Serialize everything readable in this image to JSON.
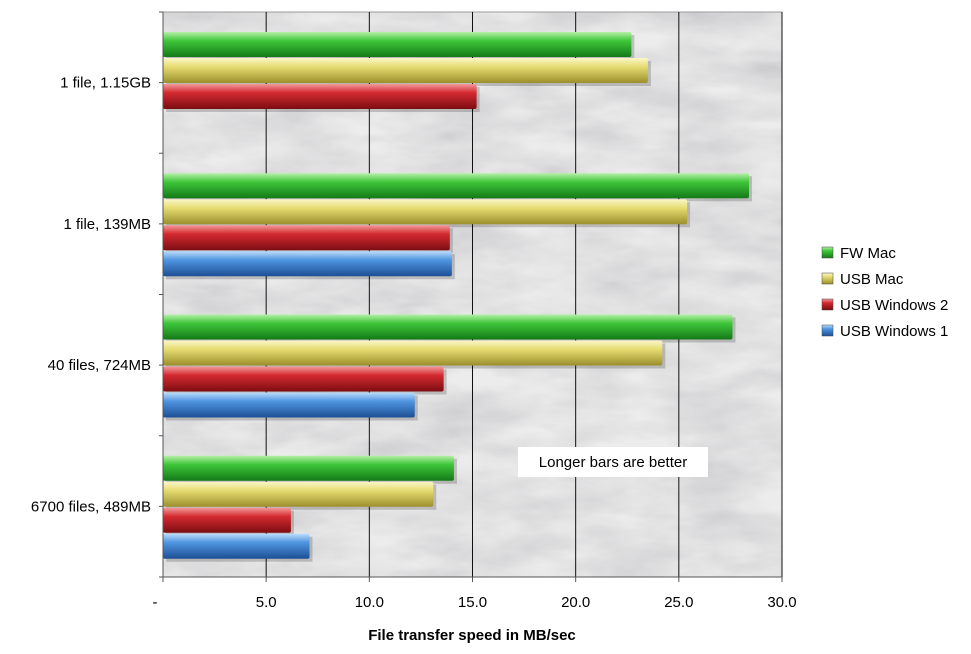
{
  "chart_data": {
    "type": "bar",
    "orientation": "horizontal",
    "categories": [
      "1 file, 1.15GB",
      "1 file, 139MB",
      "40 files, 724MB",
      "6700 files, 489MB"
    ],
    "series": [
      {
        "name": "FW Mac",
        "values": [
          22.7,
          28.4,
          27.6,
          14.1
        ],
        "color": "#2db52d"
      },
      {
        "name": "USB Mac",
        "values": [
          23.5,
          25.4,
          24.2,
          13.1
        ],
        "color": "#e3d86a"
      },
      {
        "name": "USB Windows 2",
        "values": [
          15.2,
          13.9,
          13.6,
          6.2
        ],
        "color": "#cc1f2a"
      },
      {
        "name": "USB Windows 1",
        "values": [
          null,
          14.0,
          12.2,
          7.1
        ],
        "color": "#3a86d6"
      }
    ],
    "xlim": [
      0,
      30
    ],
    "xticks": [
      "-",
      "5.0",
      "10.0",
      "15.0",
      "20.0",
      "25.0",
      "30.0"
    ],
    "xlabel": "File transfer speed in MB/sec",
    "annotation": "Longer bars are better",
    "legend_position": "right",
    "grid": true,
    "background": "marble-texture"
  }
}
